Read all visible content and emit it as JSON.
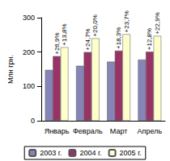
{
  "chart_data": {
    "type": "bar",
    "y_label": "Млн грн.",
    "categories": [
      "Январь",
      "Февраль",
      "Март",
      "Апрель"
    ],
    "series": [
      {
        "name": "2003 г.",
        "color": "#8585b8",
        "values": [
          148,
          160,
          172,
          178
        ]
      },
      {
        "name": "2004 г.",
        "color": "#993366",
        "values": [
          188,
          200,
          204,
          201
        ],
        "annotations": [
          "+26,9%",
          "+24,7%",
          "+18,3%",
          "+12,8%"
        ]
      },
      {
        "name": "2005 г.",
        "color": "#ffffcc",
        "values": [
          214,
          240,
          252,
          247
        ],
        "annotations": [
          "+13,8%",
          "+20,0%",
          "+23,7%",
          "+22,9%"
        ]
      }
    ],
    "ylim": [
      0,
      300
    ],
    "yticks": [
      0,
      100,
      200,
      300
    ],
    "grid": false,
    "legend": "bottom",
    "data_labels": false
  }
}
